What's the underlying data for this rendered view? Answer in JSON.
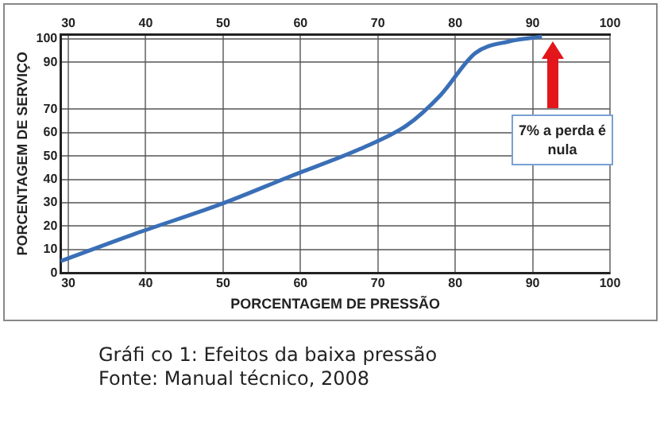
{
  "chart_data": {
    "type": "line",
    "xlabel": "PORCENTAGEM DE PRESSÃO",
    "ylabel": "PORCENTAGEM DE SERVIÇO",
    "x": [
      29,
      38.6,
      49.8,
      58.7,
      67.7,
      73.7,
      78.1,
      82.6,
      87,
      91.2
    ],
    "series": [
      {
        "color": "#3a6fb7",
        "values": [
          5,
          16.7,
          29.5,
          41.3,
          53,
          63,
          76,
          94,
          99,
          101
        ]
      }
    ],
    "xlim": [
      29,
      100
    ],
    "xticks": [
      30,
      40,
      50,
      60,
      70,
      80,
      90,
      100
    ],
    "x2lim": [
      29,
      100
    ],
    "x2ticks": [
      30,
      40,
      50,
      60,
      70,
      80,
      90,
      100
    ],
    "ylim": [
      0,
      102
    ],
    "yticks": [
      0,
      10,
      20,
      30,
      40,
      50,
      60,
      70,
      90,
      100
    ],
    "grid": true,
    "legend": false,
    "marker": "none",
    "line_style": "solid",
    "annotations": [
      "7% a perda é nula",
      "Gráfi co 1: Efeitos da baixa pressão",
      "Fonte: Manual técnico, 2008"
    ]
  }
}
